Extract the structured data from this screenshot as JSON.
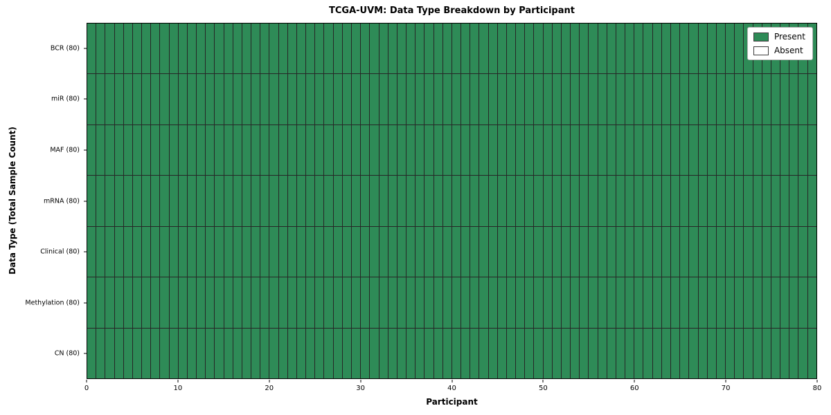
{
  "chart_data": {
    "type": "heatmap",
    "title": "TCGA-UVM: Data Type Breakdown by Participant",
    "xlabel": "Participant",
    "ylabel": "Data Type (Total Sample Count)",
    "x_range": [
      0,
      80
    ],
    "x_ticks": [
      0,
      10,
      20,
      30,
      40,
      50,
      60,
      70,
      80
    ],
    "n_participants": 80,
    "rows": [
      {
        "label": "BCR (80)",
        "data_type": "BCR",
        "total_samples": 80,
        "present_count": 80,
        "absent_count": 0
      },
      {
        "label": "miR (80)",
        "data_type": "miR",
        "total_samples": 80,
        "present_count": 80,
        "absent_count": 0
      },
      {
        "label": "MAF (80)",
        "data_type": "MAF",
        "total_samples": 80,
        "present_count": 80,
        "absent_count": 0
      },
      {
        "label": "mRNA (80)",
        "data_type": "mRNA",
        "total_samples": 80,
        "present_count": 80,
        "absent_count": 0
      },
      {
        "label": "Clinical (80)",
        "data_type": "Clinical",
        "total_samples": 80,
        "present_count": 80,
        "absent_count": 0
      },
      {
        "label": "Methylation (80)",
        "data_type": "Methylation",
        "total_samples": 80,
        "present_count": 80,
        "absent_count": 0
      },
      {
        "label": "CN (80)",
        "data_type": "CN",
        "total_samples": 80,
        "present_count": 80,
        "absent_count": 0
      }
    ],
    "legend": [
      {
        "label": "Present",
        "color": "#2e8b57"
      },
      {
        "label": "Absent",
        "color": "#ffffff"
      }
    ],
    "legend_position": "upper right",
    "grid": true,
    "colors": {
      "present": "#2e8b57",
      "absent": "#ffffff",
      "cell_border": "#262626",
      "axis": "#000000",
      "background": "#ffffff"
    }
  }
}
